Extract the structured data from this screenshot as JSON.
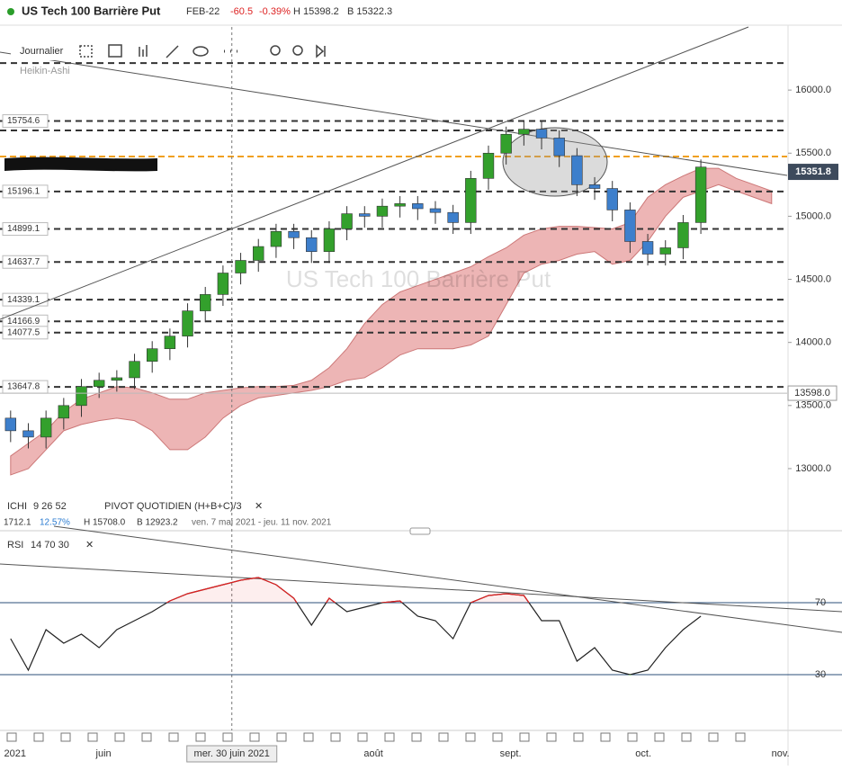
{
  "header": {
    "title": "US Tech 100 Barrière Put",
    "contract": "FEB-22",
    "change": -60.5,
    "change_pct": "-0.39%",
    "high": "H 15398.2",
    "low": "B 15322.3"
  },
  "toolbar": {
    "period": "Journalier",
    "style": "Heikin-Ashi"
  },
  "indicators": {
    "ichi": "ICHI",
    "ichi_params": "9  26  52",
    "pivot": "PIVOT  QUOTIDIEN  (H+B+C)/3",
    "range": "1712.1",
    "range_pct": "12.57%",
    "period_high": "H 15708.0",
    "period_low": "B 12923.2",
    "dates": "ven. 7 mai 2021 - jeu. 11 nov. 2021"
  },
  "chart_data": [
    {
      "type": "candlestick",
      "watermark": "US Tech 100 Barrière Put",
      "x": [
        131,
        135,
        139,
        143,
        147,
        151,
        155,
        159,
        163,
        167,
        171,
        175,
        179,
        183,
        187,
        191,
        195,
        199,
        203,
        207,
        211,
        215,
        219,
        223,
        227,
        231,
        235,
        239,
        243,
        247,
        251,
        255,
        259,
        263,
        267,
        271,
        275,
        279,
        283,
        287
      ],
      "open": [
        13400,
        13300,
        13250,
        13400,
        13500,
        13650,
        13700,
        13720,
        13850,
        13950,
        14050,
        14250,
        14380,
        14550,
        14650,
        14760,
        14880,
        14830,
        14720,
        14900,
        15020,
        15000,
        15080,
        15100,
        15060,
        15030,
        14950,
        15300,
        15500,
        15650,
        15690,
        15620,
        15480,
        15250,
        15220,
        15050,
        14800,
        14700,
        14750,
        14950
      ],
      "high": [
        13460,
        13360,
        13460,
        13560,
        13710,
        13760,
        13780,
        13910,
        14010,
        14110,
        14310,
        14440,
        14610,
        14710,
        14820,
        14940,
        14940,
        14890,
        14960,
        15080,
        15080,
        15140,
        15160,
        15160,
        15120,
        15090,
        15360,
        15560,
        15710,
        15750,
        15750,
        15680,
        15540,
        15310,
        15280,
        15110,
        14860,
        14810,
        15010,
        15450
      ],
      "low": [
        13210,
        13160,
        13160,
        13310,
        13410,
        13560,
        13610,
        13630,
        13760,
        13860,
        13960,
        14160,
        14290,
        14460,
        14560,
        14670,
        14740,
        14630,
        14630,
        14810,
        14910,
        14910,
        14990,
        14970,
        14940,
        14860,
        14860,
        15210,
        15410,
        15560,
        15530,
        15390,
        15160,
        15130,
        14960,
        14710,
        14610,
        14610,
        14660,
        14860
      ],
      "close": [
        13300,
        13250,
        13400,
        13500,
        13650,
        13700,
        13720,
        13850,
        13950,
        14050,
        14250,
        14380,
        14550,
        14650,
        14760,
        14880,
        14830,
        14720,
        14900,
        15020,
        15000,
        15080,
        15100,
        15060,
        15030,
        14950,
        15300,
        15500,
        15650,
        15690,
        15620,
        15480,
        15250,
        15220,
        15050,
        14800,
        14700,
        14750,
        14950,
        15390
      ],
      "up_color": "#33a02c",
      "down_color": "#3d7fcc",
      "cloud_x": [
        131,
        135,
        139,
        143,
        147,
        151,
        155,
        159,
        163,
        167,
        171,
        175,
        179,
        183,
        187,
        191,
        195,
        199,
        203,
        207,
        211,
        215,
        219,
        223,
        227,
        231,
        235,
        239,
        243,
        247,
        251,
        255,
        259,
        263,
        267,
        271,
        275,
        279,
        283,
        287,
        291,
        295,
        299,
        303
      ],
      "cloud_upper": [
        13100,
        13200,
        13300,
        13450,
        13550,
        13600,
        13650,
        13640,
        13600,
        13550,
        13550,
        13600,
        13620,
        13640,
        13650,
        13650,
        13660,
        13700,
        13800,
        13950,
        14150,
        14300,
        14400,
        14450,
        14500,
        14550,
        14600,
        14680,
        14750,
        14850,
        14900,
        14920,
        14920,
        14910,
        14900,
        14950,
        15150,
        15250,
        15320,
        15380,
        15380,
        15300,
        15250,
        15200
      ],
      "cloud_lower": [
        12950,
        13000,
        13150,
        13300,
        13350,
        13380,
        13400,
        13380,
        13300,
        13150,
        13150,
        13250,
        13400,
        13500,
        13560,
        13580,
        13600,
        13620,
        13650,
        13700,
        13720,
        13800,
        13900,
        13950,
        13950,
        13950,
        13980,
        14050,
        14300,
        14550,
        14620,
        14650,
        14700,
        14720,
        14620,
        14650,
        14800,
        15000,
        15150,
        15200,
        15250,
        15200,
        15150,
        15100
      ],
      "cloud_color": "#e9a3a3",
      "levels": [
        15754.6,
        15196.1,
        14899.1,
        14637.7,
        14339.1,
        14166.9,
        14077.5,
        13647.8
      ],
      "unlabeled_levels": [
        16214,
        15680
      ],
      "orange_level": 15473,
      "orange_color": "#f0a020",
      "last_price": 15351.8,
      "ref_price": {
        "value": 13598,
        "label": "13598.0"
      },
      "xlim": [
        128.6,
        306.5
      ],
      "ylim": [
        12800,
        16500
      ],
      "yticks": [
        {
          "value": 13000,
          "label": "13000.0"
        },
        {
          "value": 13500,
          "label": "13500.0"
        },
        {
          "value": 14000,
          "label": "14000.0"
        },
        {
          "value": 14500,
          "label": "14500.0"
        },
        {
          "value": 15000,
          "label": "15000.0"
        },
        {
          "value": 15500,
          "label": "15500.0"
        },
        {
          "value": 16000,
          "label": "16000.0"
        }
      ],
      "xticks": [
        {
          "value": 132,
          "label": "2021"
        },
        {
          "value": 152,
          "label": "juin"
        },
        {
          "value": 213,
          "label": "août"
        },
        {
          "value": 244,
          "label": "sept."
        },
        {
          "value": 274,
          "label": "oct."
        },
        {
          "value": 305,
          "label": "nov."
        }
      ],
      "crosshair": {
        "value": 181,
        "label": "mer. 30 juin 2021"
      }
    },
    {
      "type": "line",
      "title": "RSI",
      "params": "14  70  30",
      "x": [
        131,
        135,
        139,
        143,
        147,
        151,
        155,
        159,
        163,
        167,
        171,
        175,
        179,
        183,
        187,
        191,
        195,
        199,
        203,
        207,
        211,
        215,
        219,
        223,
        227,
        231,
        235,
        239,
        243,
        247,
        251,
        255,
        259,
        263,
        267,
        271,
        275,
        279,
        283,
        287
      ],
      "values": [
        50,
        32.5,
        55,
        47.5,
        52.5,
        45,
        55,
        60,
        65,
        71,
        75,
        77.5,
        80,
        82.5,
        84,
        80,
        72.5,
        57.5,
        72.5,
        65,
        67.5,
        70,
        71,
        62.5,
        60,
        50,
        70,
        74,
        75,
        74,
        60,
        60,
        37.5,
        45,
        32.5,
        30,
        32.5,
        45,
        55,
        62.5
      ],
      "color": "#222222",
      "over_color": "#e02020",
      "under_color": "#2a9d2a",
      "xlim": [
        128.6,
        306.5
      ],
      "ylim": [
        0,
        107.5
      ],
      "yticks": [
        30,
        70
      ]
    }
  ]
}
